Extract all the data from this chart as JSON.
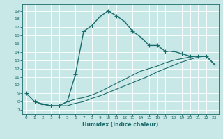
{
  "xlabel": "Humidex (Indice chaleur)",
  "bg_color": "#c8e8e8",
  "line_color": "#1a6b6b",
  "xlim": [
    -0.5,
    23.5
  ],
  "ylim": [
    6.5,
    19.8
  ],
  "xticks": [
    0,
    1,
    2,
    3,
    4,
    5,
    6,
    7,
    8,
    9,
    10,
    11,
    12,
    13,
    14,
    15,
    16,
    17,
    18,
    19,
    20,
    21,
    22,
    23
  ],
  "yticks": [
    7,
    8,
    9,
    10,
    11,
    12,
    13,
    14,
    15,
    16,
    17,
    18,
    19
  ],
  "line1_x": [
    0,
    1,
    2,
    3,
    4,
    5,
    6,
    7,
    8,
    9,
    10,
    11,
    12,
    13,
    14,
    15,
    16,
    17,
    18,
    19,
    20,
    21,
    22,
    23
  ],
  "line1_y": [
    9.0,
    8.0,
    7.7,
    7.5,
    7.5,
    8.0,
    11.3,
    16.5,
    17.2,
    18.3,
    19.0,
    18.4,
    17.7,
    16.5,
    15.8,
    14.8,
    14.8,
    14.1,
    14.1,
    13.8,
    13.5,
    13.5,
    13.5,
    12.5
  ],
  "line2_x": [
    1,
    2,
    3,
    4,
    5,
    6,
    7,
    8,
    9,
    10,
    11,
    12,
    13,
    14,
    15,
    16,
    17,
    18,
    19,
    20,
    21,
    22,
    23
  ],
  "line2_y": [
    8.0,
    7.7,
    7.5,
    7.5,
    8.0,
    8.3,
    8.5,
    8.8,
    9.2,
    9.7,
    10.2,
    10.7,
    11.2,
    11.7,
    12.0,
    12.3,
    12.7,
    13.0,
    13.2,
    13.4,
    13.5,
    13.5,
    12.5
  ],
  "line3_x": [
    2,
    3,
    4,
    5,
    6,
    7,
    8,
    9,
    10,
    11,
    12,
    13,
    14,
    15,
    16,
    17,
    18,
    19,
    20,
    21,
    22,
    23
  ],
  "line3_y": [
    7.7,
    7.5,
    7.5,
    7.5,
    7.8,
    8.0,
    8.4,
    8.7,
    9.1,
    9.5,
    9.9,
    10.3,
    10.7,
    11.1,
    11.6,
    12.0,
    12.4,
    12.8,
    13.1,
    13.4,
    13.5,
    12.5
  ],
  "grid_color": "#ffffff",
  "marker": "+",
  "markersize": 4.0,
  "linewidth1": 1.0,
  "linewidth2": 0.8
}
